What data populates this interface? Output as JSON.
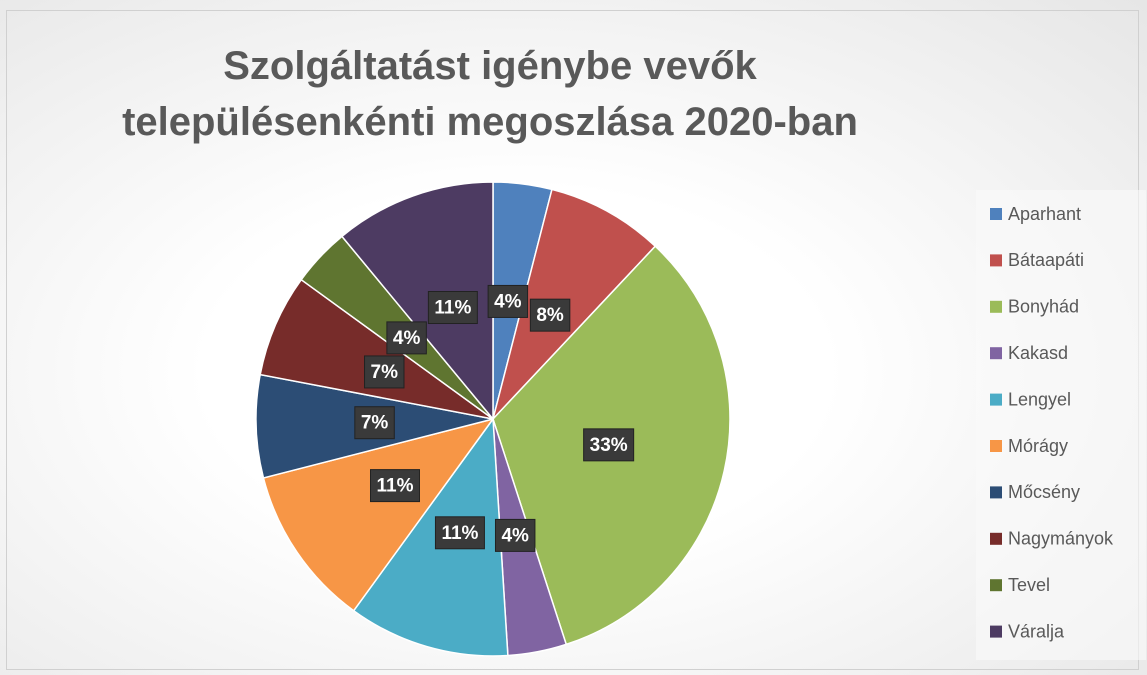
{
  "chart_data": {
    "type": "pie",
    "title": "Szolgáltatást igénybe vevők településenkénti megoszlása 2020-ban",
    "categories": [
      "Aparhant",
      "Bátaapáti",
      "Bonyhád",
      "Kakasd",
      "Lengyel",
      "Mórágy",
      "Mőcsény",
      "Nagymányok",
      "Tevel",
      "Váralja"
    ],
    "values": [
      4,
      8,
      33,
      4,
      11,
      11,
      7,
      7,
      4,
      11
    ],
    "value_labels": [
      "4%",
      "8%",
      "33%",
      "4%",
      "11%",
      "11%",
      "7%",
      "7%",
      "4%",
      "11%"
    ],
    "colors": [
      "#4f81bd",
      "#c0504d",
      "#9bbb59",
      "#8064a2",
      "#4bacc6",
      "#f79646",
      "#2c4d75",
      "#772c2a",
      "#5f7530",
      "#4d3b62"
    ],
    "legend": "right"
  }
}
